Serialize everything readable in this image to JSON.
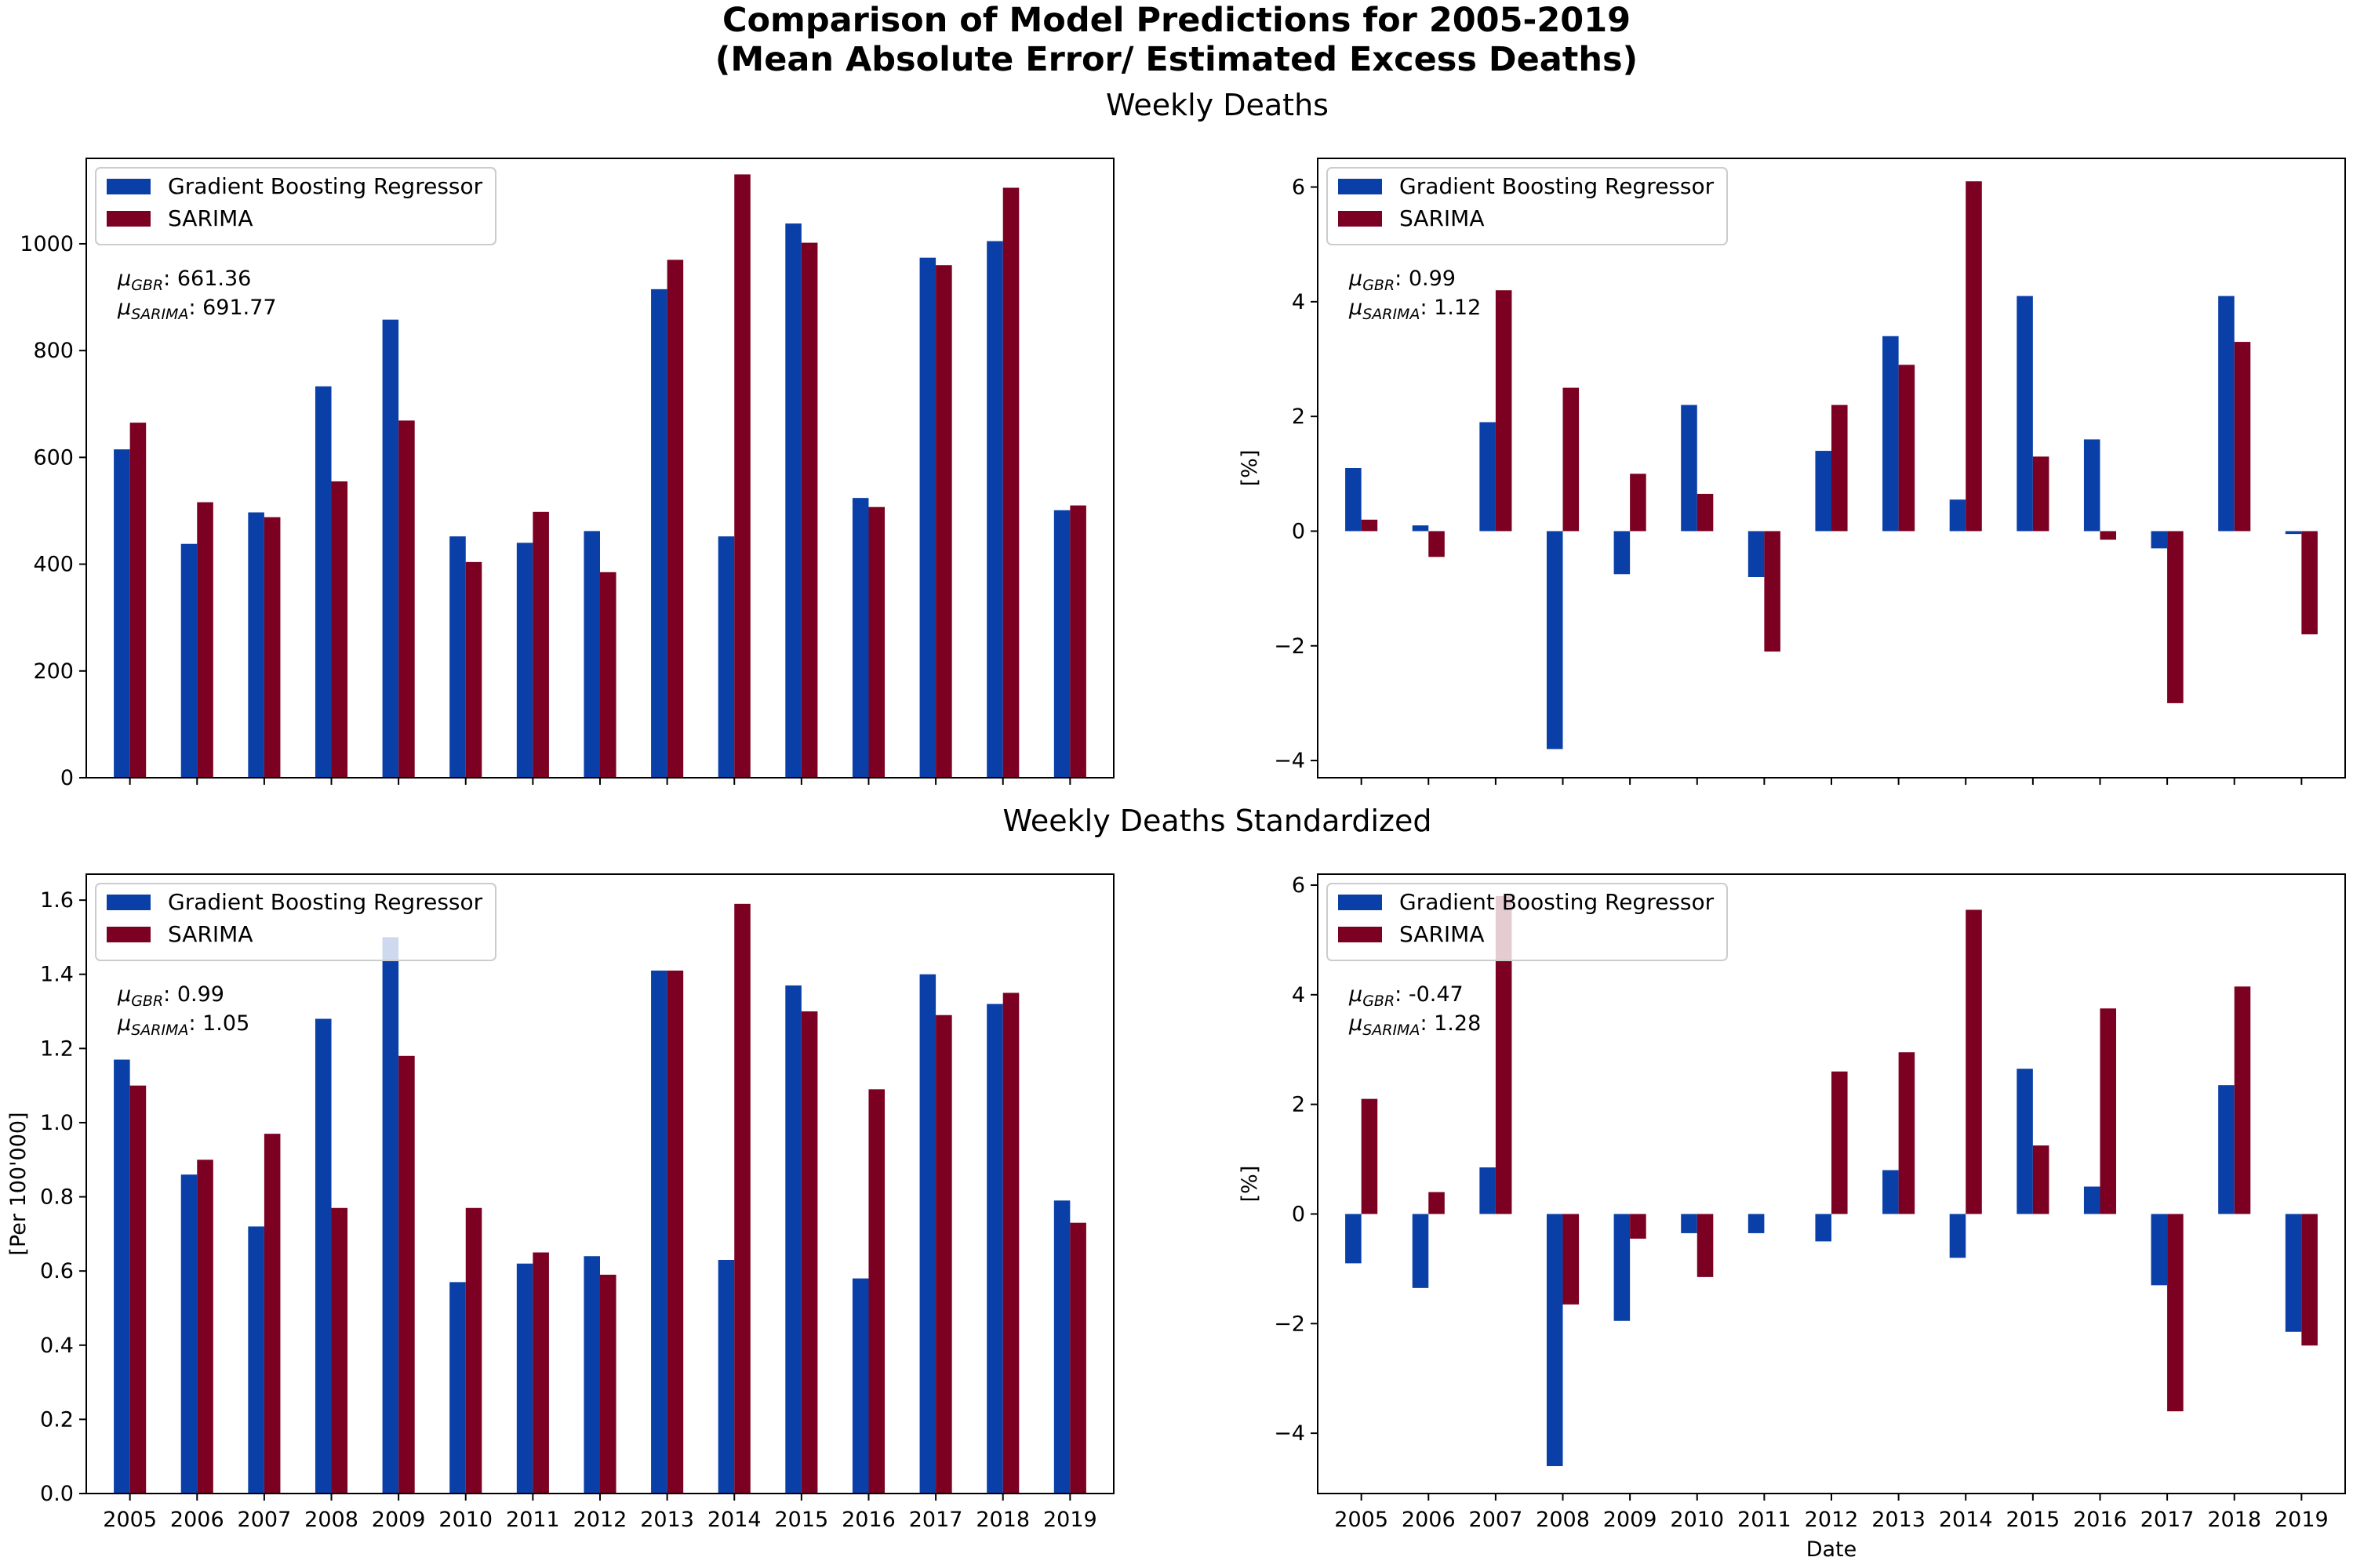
{
  "figure": {
    "title_line1": "Comparison of Model Predictions for 2005-2019",
    "title_line2": "(Mean Absolute Error/ Estimated Excess Deaths)",
    "row1_title": "Weekly Deaths",
    "row2_title": "Weekly Deaths Standardized",
    "xlabel": "Date"
  },
  "colors": {
    "gbr": "#0a3fa8",
    "sarima": "#7b0022"
  },
  "chart_data": [
    {
      "type": "bar",
      "panel": "top-left",
      "categories": [
        "2005",
        "2006",
        "2007",
        "2008",
        "2009",
        "2010",
        "2011",
        "2012",
        "2013",
        "2014",
        "2015",
        "2016",
        "2017",
        "2018",
        "2019"
      ],
      "series": [
        {
          "name": "Gradient Boosting Regressor",
          "values": [
            615,
            438,
            497,
            733,
            858,
            452,
            440,
            462,
            915,
            452,
            1038,
            524,
            974,
            1005,
            501
          ]
        },
        {
          "name": "SARIMA",
          "values": [
            665,
            516,
            488,
            555,
            669,
            404,
            498,
            385,
            970,
            1130,
            1002,
            507,
            960,
            1105,
            510
          ]
        }
      ],
      "ylim": [
        0,
        1160
      ],
      "yticks": [
        0,
        200,
        400,
        600,
        800,
        1000
      ],
      "ylabel": "",
      "xlabel": "",
      "show_xticklabels": false,
      "legend": "top-left",
      "annotation": {
        "gbr_sym": "μ",
        "gbr_sub": "GBR",
        "gbr_val": ": 661.36",
        "sar_sym": "μ",
        "sar_sub": "SARIMA",
        "sar_val": ": 691.77"
      }
    },
    {
      "type": "bar",
      "panel": "top-right",
      "categories": [
        "2005",
        "2006",
        "2007",
        "2008",
        "2009",
        "2010",
        "2011",
        "2012",
        "2013",
        "2014",
        "2015",
        "2016",
        "2017",
        "2018",
        "2019"
      ],
      "series": [
        {
          "name": "Gradient Boosting Regressor",
          "values": [
            1.1,
            0.1,
            1.9,
            -3.8,
            -0.75,
            2.2,
            -0.8,
            1.4,
            3.4,
            0.55,
            4.1,
            1.6,
            -0.3,
            4.1,
            -0.05
          ]
        },
        {
          "name": "SARIMA",
          "values": [
            0.2,
            -0.45,
            4.2,
            2.5,
            1.0,
            0.65,
            -2.1,
            2.2,
            2.9,
            6.1,
            1.3,
            -0.15,
            -3.0,
            3.3,
            -1.8
          ]
        }
      ],
      "ylim": [
        -4.3,
        6.5
      ],
      "yticks": [
        -4,
        -2,
        0,
        2,
        4,
        6
      ],
      "ylabel": "[%]",
      "xlabel": "",
      "show_xticklabels": false,
      "legend": "top-left",
      "annotation": {
        "gbr_sym": "μ",
        "gbr_sub": "GBR",
        "gbr_val": ": 0.99",
        "sar_sym": "μ",
        "sar_sub": "SARIMA",
        "sar_val": ": 1.12"
      }
    },
    {
      "type": "bar",
      "panel": "bottom-left",
      "categories": [
        "2005",
        "2006",
        "2007",
        "2008",
        "2009",
        "2010",
        "2011",
        "2012",
        "2013",
        "2014",
        "2015",
        "2016",
        "2017",
        "2018",
        "2019"
      ],
      "series": [
        {
          "name": "Gradient Boosting Regressor",
          "values": [
            1.17,
            0.86,
            0.72,
            1.28,
            1.5,
            0.57,
            0.62,
            0.64,
            1.41,
            0.63,
            1.37,
            0.58,
            1.4,
            1.32,
            0.79
          ]
        },
        {
          "name": "SARIMA",
          "values": [
            1.1,
            0.9,
            0.97,
            0.77,
            1.18,
            0.77,
            0.65,
            0.59,
            1.41,
            1.59,
            1.3,
            1.09,
            1.29,
            1.35,
            0.73
          ]
        }
      ],
      "ylim": [
        0,
        1.67
      ],
      "yticks": [
        0.0,
        0.2,
        0.4,
        0.6,
        0.8,
        1.0,
        1.2,
        1.4,
        1.6
      ],
      "ytick_labels": [
        "0.0",
        "0.2",
        "0.4",
        "0.6",
        "0.8",
        "1.0",
        "1.2",
        "1.4",
        "1.6"
      ],
      "ylabel": "[Per 100'000]",
      "xlabel": "",
      "show_xticklabels": true,
      "legend": "top-left",
      "annotation": {
        "gbr_sym": "μ",
        "gbr_sub": "GBR",
        "gbr_val": ": 0.99",
        "sar_sym": "μ",
        "sar_sub": "SARIMA",
        "sar_val": ": 1.05"
      }
    },
    {
      "type": "bar",
      "panel": "bottom-right",
      "categories": [
        "2005",
        "2006",
        "2007",
        "2008",
        "2009",
        "2010",
        "2011",
        "2012",
        "2013",
        "2014",
        "2015",
        "2016",
        "2017",
        "2018",
        "2019"
      ],
      "series": [
        {
          "name": "Gradient Boosting Regressor",
          "values": [
            -0.9,
            -1.35,
            0.85,
            -4.6,
            -1.95,
            -0.35,
            -0.35,
            -0.5,
            0.8,
            -0.8,
            2.65,
            0.5,
            -1.3,
            2.35,
            -2.15
          ]
        },
        {
          "name": "SARIMA",
          "values": [
            2.1,
            0.4,
            5.8,
            -1.65,
            -0.45,
            -1.15,
            0.0,
            2.6,
            2.95,
            5.55,
            1.25,
            3.75,
            -3.6,
            4.15,
            -2.4
          ]
        }
      ],
      "ylim": [
        -5.1,
        6.2
      ],
      "yticks": [
        -4,
        -2,
        0,
        2,
        4,
        6
      ],
      "ylabel": "[%]",
      "xlabel": "Date",
      "show_xticklabels": true,
      "legend": "top-left",
      "annotation": {
        "gbr_sym": "μ",
        "gbr_sub": "GBR",
        "gbr_val": ": -0.47",
        "sar_sym": "μ",
        "sar_sub": "SARIMA",
        "sar_val": ": 1.28"
      }
    }
  ]
}
